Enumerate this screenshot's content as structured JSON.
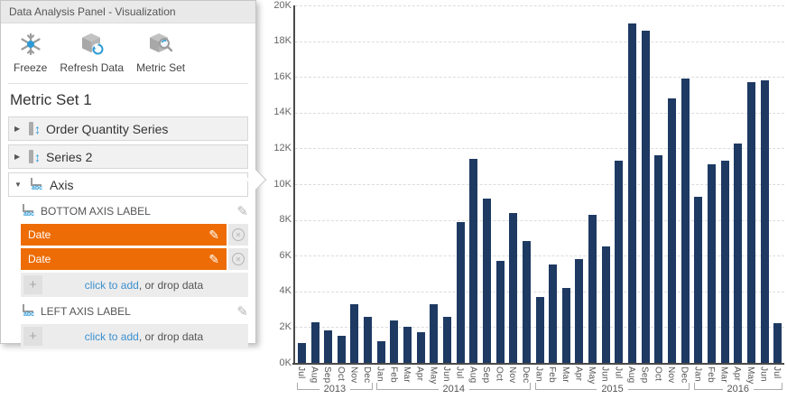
{
  "panel": {
    "title": "Data Analysis Panel - Visualization",
    "toolbar": {
      "freeze": "Freeze",
      "refresh": "Refresh Data",
      "metric_set": "Metric Set"
    },
    "metric_set_title": "Metric Set 1",
    "sections": [
      {
        "label": "Order Quantity Series",
        "state": "collapsed"
      },
      {
        "label": "Series 2",
        "state": "collapsed"
      },
      {
        "label": "Axis",
        "state": "expanded"
      }
    ],
    "axis_section": {
      "bottom_axis_label": "BOTTOM AXIS LABEL",
      "fields": [
        {
          "value": "Date"
        },
        {
          "value": "Date"
        }
      ],
      "left_axis_label": "LEFT AXIS LABEL",
      "add_link": "click to add",
      "add_rest": ", or drop data"
    },
    "colors": {
      "field_orange": "#ed6c05",
      "link_blue": "#3b8fce",
      "accent_blue": "#2e9bd6"
    }
  },
  "chart_data": {
    "type": "bar",
    "title": "",
    "xlabel": "Date",
    "ylabel": "",
    "ylim": [
      0,
      20000
    ],
    "yticks": [
      "0K",
      "2K",
      "4K",
      "6K",
      "8K",
      "10K",
      "12K",
      "14K",
      "16K",
      "18K",
      "20K"
    ],
    "grid": "dashed-horizontal",
    "bar_color": "#1e3a63",
    "categories": [
      "Jul",
      "Aug",
      "Sep",
      "Oct",
      "Nov",
      "Dec",
      "Jan",
      "Feb",
      "Mar",
      "Apr",
      "May",
      "Jun",
      "Jul",
      "Aug",
      "Sep",
      "Oct",
      "Nov",
      "Dec",
      "Jan",
      "Feb",
      "Mar",
      "Apr",
      "May",
      "Jun",
      "Jul",
      "Aug",
      "Sep",
      "Oct",
      "Nov",
      "Dec",
      "Jan",
      "Feb",
      "Mar",
      "Apr",
      "May",
      "Jun",
      "Jul"
    ],
    "year_groups": [
      {
        "label": "2013",
        "count": 6
      },
      {
        "label": "2014",
        "count": 12
      },
      {
        "label": "2015",
        "count": 12
      },
      {
        "label": "2016",
        "count": 7
      }
    ],
    "values": [
      1100,
      2300,
      1800,
      1500,
      3300,
      2600,
      1200,
      2400,
      2000,
      1700,
      3300,
      2600,
      7900,
      11400,
      9200,
      5700,
      8400,
      6800,
      3700,
      5500,
      4200,
      5800,
      8300,
      6500,
      11300,
      19000,
      18600,
      11600,
      14800,
      15900,
      9300,
      11100,
      11300,
      12300,
      15700,
      15800,
      2200
    ]
  }
}
